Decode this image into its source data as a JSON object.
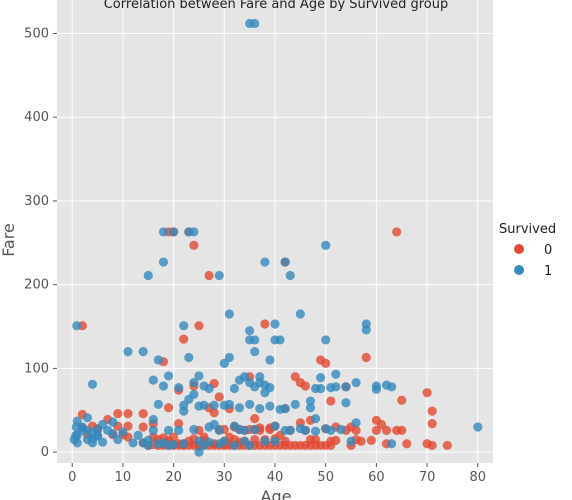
{
  "chart_data": {
    "type": "scatter",
    "title": "Correlation between Fare and Age by Survived group",
    "xlabel": "Age",
    "ylabel": "Fare",
    "xlim": [
      -3,
      83
    ],
    "ylim": [
      -13,
      540
    ],
    "xticks": [
      "0",
      "10",
      "20",
      "30",
      "40",
      "50",
      "60",
      "70",
      "80"
    ],
    "yticks": [
      "0",
      "100",
      "200",
      "300",
      "400",
      "500"
    ],
    "grid": true,
    "legend": {
      "title": "Survived",
      "placement": "right"
    },
    "series": [
      {
        "name": "0",
        "color": "#e24a33",
        "points": [
          [
            2,
            29
          ],
          [
            2,
            151
          ],
          [
            2,
            45
          ],
          [
            3,
            21
          ],
          [
            4,
            31
          ],
          [
            5,
            28
          ],
          [
            7,
            39
          ],
          [
            8,
            21
          ],
          [
            9,
            31
          ],
          [
            9,
            46
          ],
          [
            10,
            21
          ],
          [
            11,
            46
          ],
          [
            11,
            31
          ],
          [
            11,
            18
          ],
          [
            14,
            46
          ],
          [
            14,
            11
          ],
          [
            14,
            30
          ],
          [
            15,
            8
          ],
          [
            16,
            9
          ],
          [
            16,
            18
          ],
          [
            16,
            34
          ],
          [
            17,
            8
          ],
          [
            17,
            15
          ],
          [
            18,
            8
          ],
          [
            18,
            11
          ],
          [
            18,
            108
          ],
          [
            18,
            17
          ],
          [
            19,
            263
          ],
          [
            19,
            8
          ],
          [
            19,
            11
          ],
          [
            19,
            14
          ],
          [
            19,
            53
          ],
          [
            20,
            8
          ],
          [
            20,
            9
          ],
          [
            20,
            18
          ],
          [
            20,
            263
          ],
          [
            21,
            8
          ],
          [
            21,
            10
          ],
          [
            21,
            74
          ],
          [
            21,
            34
          ],
          [
            22,
            8
          ],
          [
            22,
            135
          ],
          [
            22,
            10
          ],
          [
            22,
            9
          ],
          [
            23,
            8
          ],
          [
            23,
            13
          ],
          [
            23,
            263
          ],
          [
            24,
            8
          ],
          [
            24,
            247
          ],
          [
            24,
            16
          ],
          [
            24,
            79
          ],
          [
            25,
            8
          ],
          [
            25,
            151
          ],
          [
            25,
            26
          ],
          [
            25,
            7
          ],
          [
            26,
            8
          ],
          [
            26,
            18
          ],
          [
            26,
            14
          ],
          [
            27,
            8
          ],
          [
            27,
            211
          ],
          [
            27,
            53
          ],
          [
            28,
            8
          ],
          [
            28,
            10
          ],
          [
            28,
            47
          ],
          [
            28,
            82
          ],
          [
            29,
            8
          ],
          [
            29,
            27
          ],
          [
            29,
            66
          ],
          [
            30,
            8
          ],
          [
            30,
            9
          ],
          [
            30,
            27
          ],
          [
            30,
            13
          ],
          [
            31,
            8
          ],
          [
            31,
            10
          ],
          [
            31,
            52
          ],
          [
            31,
            18
          ],
          [
            32,
            8
          ],
          [
            32,
            15
          ],
          [
            32,
            30
          ],
          [
            33,
            8
          ],
          [
            33,
            12
          ],
          [
            33,
            27
          ],
          [
            34,
            8
          ],
          [
            34,
            13
          ],
          [
            34,
            26
          ],
          [
            35,
            8
          ],
          [
            35,
            90
          ],
          [
            35,
            27
          ],
          [
            36,
            8
          ],
          [
            36,
            15
          ],
          [
            36,
            27
          ],
          [
            36,
            40
          ],
          [
            37,
            8
          ],
          [
            37,
            29
          ],
          [
            37,
            26
          ],
          [
            38,
            8
          ],
          [
            38,
            153
          ],
          [
            38,
            15
          ],
          [
            39,
            8
          ],
          [
            39,
            29
          ],
          [
            39,
            27
          ],
          [
            40,
            8
          ],
          [
            40,
            16
          ],
          [
            40,
            31
          ],
          [
            41,
            8
          ],
          [
            41,
            20
          ],
          [
            42,
            8
          ],
          [
            42,
            227
          ],
          [
            42,
            13
          ],
          [
            42,
            52
          ],
          [
            43,
            8
          ],
          [
            43,
            26
          ],
          [
            44,
            8
          ],
          [
            44,
            90
          ],
          [
            45,
            8
          ],
          [
            45,
            35
          ],
          [
            45,
            83
          ],
          [
            46,
            8
          ],
          [
            46,
            26
          ],
          [
            46,
            79
          ],
          [
            47,
            8
          ],
          [
            47,
            38
          ],
          [
            47,
            15
          ],
          [
            48,
            8
          ],
          [
            48,
            15
          ],
          [
            49,
            8
          ],
          [
            49,
            110
          ],
          [
            50,
            8
          ],
          [
            50,
            28
          ],
          [
            50,
            106
          ],
          [
            51,
            8
          ],
          [
            51,
            13
          ],
          [
            51,
            61
          ],
          [
            52,
            14
          ],
          [
            52,
            30
          ],
          [
            54,
            26
          ],
          [
            54,
            78
          ],
          [
            55,
            8
          ],
          [
            55,
            30
          ],
          [
            56,
            15
          ],
          [
            56,
            26
          ],
          [
            57,
            13
          ],
          [
            58,
            113
          ],
          [
            59,
            14
          ],
          [
            60,
            26
          ],
          [
            60,
            38
          ],
          [
            61,
            33
          ],
          [
            62,
            26
          ],
          [
            62,
            10
          ],
          [
            64,
            263
          ],
          [
            64,
            26
          ],
          [
            65,
            26
          ],
          [
            65,
            62
          ],
          [
            66,
            10
          ],
          [
            70,
            71
          ],
          [
            70,
            10
          ],
          [
            71,
            49
          ],
          [
            71,
            34
          ],
          [
            71,
            8
          ],
          [
            74,
            8
          ]
        ]
      },
      {
        "name": "1",
        "color": "#348abd",
        "points": [
          [
            0.4,
            15
          ],
          [
            0.7,
            20
          ],
          [
            0.8,
            30
          ],
          [
            0.9,
            151
          ],
          [
            1,
            11
          ],
          [
            1,
            20
          ],
          [
            1,
            37
          ],
          [
            2,
            26
          ],
          [
            2,
            30
          ],
          [
            3,
            26
          ],
          [
            3,
            15
          ],
          [
            3,
            41
          ],
          [
            4,
            16
          ],
          [
            4,
            23
          ],
          [
            4,
            81
          ],
          [
            4,
            11
          ],
          [
            5,
            20
          ],
          [
            5,
            27
          ],
          [
            5,
            19
          ],
          [
            6,
            12
          ],
          [
            6,
            33
          ],
          [
            7,
            26
          ],
          [
            8,
            36
          ],
          [
            8,
            22
          ],
          [
            9,
            15
          ],
          [
            10,
            24
          ],
          [
            11,
            120
          ],
          [
            12,
            11
          ],
          [
            13,
            20
          ],
          [
            14,
            120
          ],
          [
            14,
            11
          ],
          [
            15,
            211
          ],
          [
            15,
            14
          ],
          [
            15,
            8
          ],
          [
            16,
            86
          ],
          [
            16,
            26
          ],
          [
            16,
            39
          ],
          [
            17,
            57
          ],
          [
            17,
            110
          ],
          [
            17,
            10
          ],
          [
            18,
            227
          ],
          [
            18,
            263
          ],
          [
            18,
            79
          ],
          [
            18,
            11
          ],
          [
            19,
            91
          ],
          [
            19,
            26
          ],
          [
            19,
            8
          ],
          [
            20,
            263
          ],
          [
            20,
            9
          ],
          [
            21,
            77
          ],
          [
            21,
            26
          ],
          [
            22,
            151
          ],
          [
            22,
            49
          ],
          [
            22,
            10
          ],
          [
            22,
            56
          ],
          [
            23,
            263
          ],
          [
            23,
            63
          ],
          [
            23,
            113
          ],
          [
            24,
            263
          ],
          [
            24,
            69
          ],
          [
            24,
            83
          ],
          [
            24,
            27
          ],
          [
            25,
            91
          ],
          [
            25,
            55
          ],
          [
            25,
            0
          ],
          [
            25,
            13
          ],
          [
            26,
            56
          ],
          [
            26,
            79
          ],
          [
            26,
            8
          ],
          [
            27,
            76
          ],
          [
            27,
            12
          ],
          [
            27,
            30
          ],
          [
            28,
            56
          ],
          [
            28,
            33
          ],
          [
            29,
            211
          ],
          [
            29,
            10
          ],
          [
            29,
            26
          ],
          [
            30,
            106
          ],
          [
            30,
            56
          ],
          [
            30,
            13
          ],
          [
            31,
            113
          ],
          [
            31,
            165
          ],
          [
            31,
            57
          ],
          [
            32,
            76
          ],
          [
            32,
            8
          ],
          [
            32,
            31
          ],
          [
            33,
            86
          ],
          [
            33,
            53
          ],
          [
            33,
            27
          ],
          [
            34,
            90
          ],
          [
            34,
            26
          ],
          [
            34,
            13
          ],
          [
            35,
            512
          ],
          [
            35,
            134
          ],
          [
            35,
            145
          ],
          [
            35,
            57
          ],
          [
            35,
            83
          ],
          [
            35,
            8
          ],
          [
            36,
            512
          ],
          [
            36,
            120
          ],
          [
            36,
            134
          ],
          [
            36,
            78
          ],
          [
            36,
            27
          ],
          [
            37,
            52
          ],
          [
            37,
            90
          ],
          [
            37,
            83
          ],
          [
            38,
            227
          ],
          [
            38,
            80
          ],
          [
            38,
            71
          ],
          [
            38,
            13
          ],
          [
            39,
            110
          ],
          [
            39,
            77
          ],
          [
            39,
            55
          ],
          [
            40,
            153
          ],
          [
            40,
            134
          ],
          [
            40,
            31
          ],
          [
            40,
            13
          ],
          [
            41,
            134
          ],
          [
            41,
            51
          ],
          [
            42,
            227
          ],
          [
            42,
            52
          ],
          [
            42,
            26
          ],
          [
            43,
            211
          ],
          [
            43,
            26
          ],
          [
            44,
            57
          ],
          [
            45,
            165
          ],
          [
            45,
            28
          ],
          [
            46,
            26
          ],
          [
            47,
            53
          ],
          [
            47,
            61
          ],
          [
            48,
            76
          ],
          [
            48,
            40
          ],
          [
            48,
            25
          ],
          [
            49,
            89
          ],
          [
            49,
            76
          ],
          [
            50,
            247
          ],
          [
            50,
            134
          ],
          [
            50,
            28
          ],
          [
            51,
            77
          ],
          [
            51,
            26
          ],
          [
            52,
            93
          ],
          [
            52,
            78
          ],
          [
            53,
            27
          ],
          [
            54,
            59
          ],
          [
            54,
            78
          ],
          [
            55,
            13
          ],
          [
            56,
            83
          ],
          [
            56,
            35
          ],
          [
            58,
            153
          ],
          [
            58,
            146
          ],
          [
            60,
            79
          ],
          [
            60,
            75
          ],
          [
            62,
            80
          ],
          [
            63,
            78
          ],
          [
            63,
            10
          ],
          [
            80,
            30
          ]
        ]
      }
    ]
  }
}
